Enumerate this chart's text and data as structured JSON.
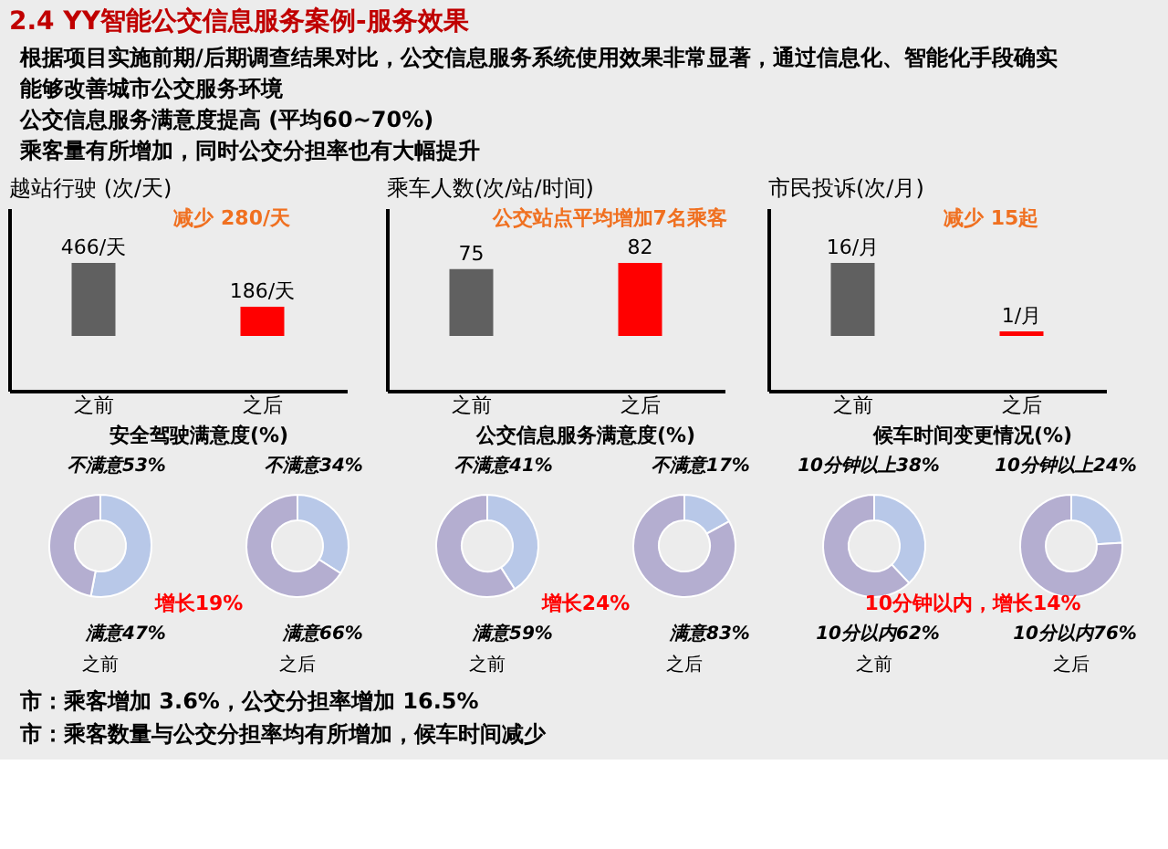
{
  "chart_data": [
    {
      "type": "other",
      "title": "2.4  YY智能公交信息服务案例-服务效果",
      "annotations": [
        "根据项目实施前期/后期调查结果对比，公交信息服务系统使用效果非常显著，通过信息化、智能化手段确实",
        "能够改善城市公交服务环境",
        "公交信息服务满意度提高 (平均60~70%)",
        "乘客量有所增加，同时公交分担率也有大幅提升"
      ]
    },
    {
      "type": "bar",
      "title": "越站行驶 (次/天)",
      "categories": [
        "之前",
        "之后"
      ],
      "values": [
        466,
        186
      ],
      "colors": [
        "#606060",
        "#ff0000"
      ],
      "value_labels": [
        "466/天",
        "186/天"
      ],
      "annotations": [
        "减少 280/天"
      ],
      "tick_labels": "x"
    },
    {
      "type": "bar",
      "title": "乘车人数(次/站/时间)",
      "categories": [
        "之前",
        "之后"
      ],
      "values": [
        75,
        82
      ],
      "colors": [
        "#606060",
        "#ff0000"
      ],
      "value_labels": [
        "75",
        "82"
      ],
      "annotations": [
        "公交站点平均增加7名乘客"
      ],
      "tick_labels": "x"
    },
    {
      "type": "bar",
      "title": "市民投诉(次/月)",
      "categories": [
        "之前",
        "之后"
      ],
      "values": [
        16,
        1
      ],
      "colors": [
        "#606060",
        "#ff0000"
      ],
      "value_labels": [
        "16/月",
        "1/月"
      ],
      "annotations": [
        "减少 15起"
      ],
      "tick_labels": "x"
    },
    {
      "type": "donut",
      "title": "安全驾驶满意度(%)",
      "xlabel": "之前",
      "categories": [
        "不满意",
        "满意"
      ],
      "values": [
        53,
        47
      ],
      "colors": [
        "#b8c8e8",
        "#b4aed0"
      ],
      "value_labels": [
        "53%",
        "47%"
      ]
    },
    {
      "type": "donut",
      "xlabel": "之后",
      "categories": [
        "不满意",
        "满意"
      ],
      "values": [
        34,
        66
      ],
      "colors": [
        "#b8c8e8",
        "#b4aed0"
      ],
      "value_labels": [
        "34%",
        "66%"
      ],
      "annotations": [
        "增长19%"
      ]
    },
    {
      "type": "donut",
      "title": "公交信息服务满意度(%)",
      "xlabel": "之前",
      "categories": [
        "不满意",
        "满意"
      ],
      "values": [
        41,
        59
      ],
      "colors": [
        "#b8c8e8",
        "#b4aed0"
      ],
      "value_labels": [
        "41%",
        "59%"
      ]
    },
    {
      "type": "donut",
      "xlabel": "之后",
      "categories": [
        "不满意",
        "满意"
      ],
      "values": [
        17,
        83
      ],
      "colors": [
        "#b8c8e8",
        "#b4aed0"
      ],
      "value_labels": [
        "17%",
        "83%"
      ],
      "annotations": [
        "增长24%"
      ]
    },
    {
      "type": "donut",
      "title": "候车时间变更情况(%)",
      "xlabel": "之前",
      "categories": [
        "10分钟以上",
        "10分以内"
      ],
      "values": [
        38,
        62
      ],
      "colors": [
        "#b8c8e8",
        "#b4aed0"
      ],
      "value_labels": [
        "38%",
        "62%"
      ]
    },
    {
      "type": "donut",
      "xlabel": "之后",
      "categories": [
        "10分钟以上",
        "10分以内"
      ],
      "values": [
        24,
        76
      ],
      "colors": [
        "#b8c8e8",
        "#b4aed0"
      ],
      "value_labels": [
        "24%",
        "76%"
      ],
      "annotations": [
        "10分钟以内，增长14%"
      ]
    },
    {
      "type": "other",
      "annotations": [
        "市：乘客增加 3.6%，公交分担率增加 16.5%",
        "市：乘客数量与公交分担率均有所增加，候车时间减少"
      ]
    }
  ]
}
